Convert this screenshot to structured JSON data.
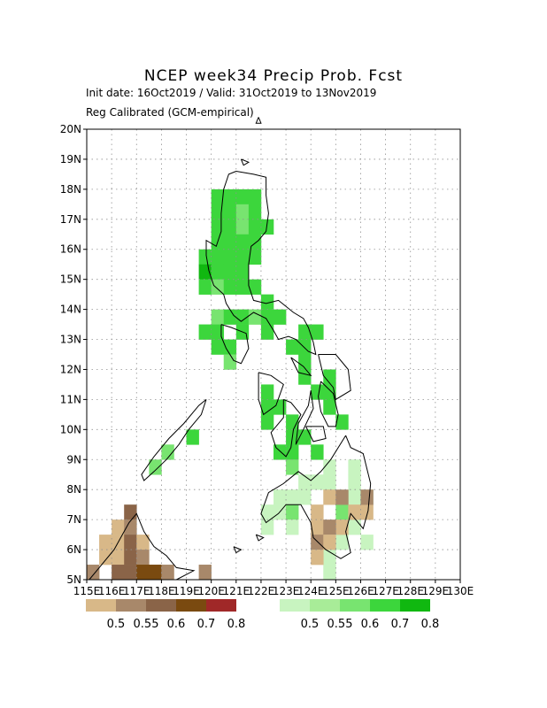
{
  "title": "NCEP week34 Precip Prob. Fcst",
  "subtitle": "Init date: 16Oct2019 / Valid: 31Oct2019 to 13Nov2019",
  "subtitle2": "Reg Calibrated (GCM-empirical)",
  "map": {
    "lon_range": [
      115,
      130
    ],
    "lat_range": [
      5,
      20
    ],
    "lat_ticks": [
      "5N",
      "6N",
      "7N",
      "8N",
      "9N",
      "10N",
      "11N",
      "12N",
      "13N",
      "14N",
      "15N",
      "16N",
      "17N",
      "18N",
      "19N",
      "20N"
    ],
    "lon_ticks": [
      "115E",
      "116E",
      "117E",
      "118E",
      "119E",
      "120E",
      "121E",
      "122E",
      "123E",
      "124E",
      "125E",
      "126E",
      "127E",
      "128E",
      "129E",
      "130E"
    ],
    "grid": true
  },
  "legend": {
    "below": {
      "colors": [
        "#d8b888",
        "#a8886a",
        "#8a6448",
        "#7a4a10",
        "#a02828"
      ],
      "labels": [
        "0.5",
        "0.55",
        "0.6",
        "0.7",
        "0.8"
      ]
    },
    "above": {
      "colors": [
        "#c8f4c0",
        "#a8ec98",
        "#78e470",
        "#3cd63c",
        "#10b810"
      ],
      "labels": [
        "0.5",
        "0.55",
        "0.6",
        "0.7",
        "0.8"
      ]
    }
  },
  "colors": {
    "above_mid": "#3cd63c",
    "above_dark": "#10b810",
    "above_light": "#78e470",
    "above_pale": "#c8f4c0",
    "below_tan": "#d8b888",
    "below_mid": "#a8886a",
    "below_dark": "#8a6448",
    "below_darkest": "#7a4a10"
  }
}
